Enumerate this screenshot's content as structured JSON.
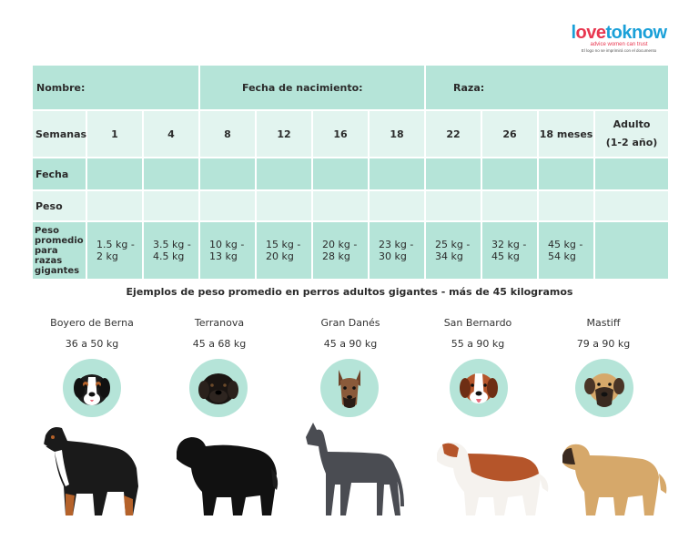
{
  "logo": {
    "wordmark_a": "l",
    "wordmark_b": "ove",
    "wordmark_c": "toknow",
    "tagline": "advice women can trust",
    "note": "El logo no se imprimirá con el documento"
  },
  "header": {
    "name_label": "Nombre:",
    "birth_label": "Fecha de nacimiento:",
    "breed_label": "Raza:"
  },
  "table": {
    "weeks_label": "Semanas",
    "weeks": [
      "1",
      "4",
      "8",
      "12",
      "16",
      "18",
      "22",
      "26",
      "18 meses"
    ],
    "adult_line1": "Adulto",
    "adult_line2": "(1-2 año)",
    "date_label": "Fecha",
    "weight_label": "Peso",
    "avg_label": "Peso promedio para razas gigantes",
    "avg_weights": [
      "1.5 kg - 2 kg",
      "3.5 kg - 4.5 kg",
      "10 kg - 13 kg",
      "15 kg - 20 kg",
      "20 kg - 28 kg",
      "23 kg - 30 kg",
      "25 kg - 34 kg",
      "32 kg - 45 kg",
      "45 kg - 54 kg",
      ""
    ]
  },
  "caption": "Ejemplos de peso promedio en perros adultos gigantes - más de 45 kilogramos",
  "breeds": [
    {
      "name": "Boyero de Berna",
      "weight": "36 a 50 kg"
    },
    {
      "name": "Terranova",
      "weight": "45 a 68 kg"
    },
    {
      "name": "Gran Danés",
      "weight": "45 a 90 kg"
    },
    {
      "name": "San Bernardo",
      "weight": "55 a 90 kg"
    },
    {
      "name": "Mastiff",
      "weight": "79 a 90 kg"
    }
  ],
  "colors": {
    "accent_dark": "#b5e4d8",
    "accent_light": "#e2f4ef",
    "logo_blue": "#1aa0d8",
    "logo_red": "#e8364f"
  }
}
